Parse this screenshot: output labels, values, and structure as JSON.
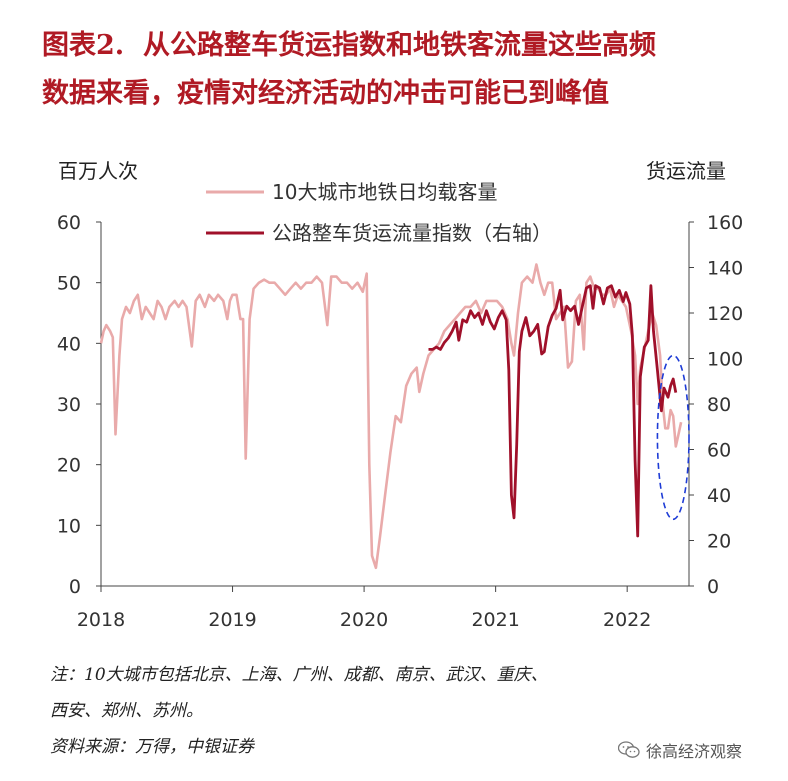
{
  "title": {
    "prefix": "图表2.",
    "line1": "从公路整车货运指数和地铁客流量这些高频",
    "line2": "数据来看，疫情对经济活动的冲击可能已到峰值"
  },
  "notes": {
    "note1": "注：10大城市包括北京、上海、广州、成都、南京、武汉、重庆、",
    "note2": "西安、郑州、苏州。",
    "source": "资料来源：万得，中银证券"
  },
  "watermark": {
    "text": "徐高经济观察",
    "icon": "wechat-icon"
  },
  "chart_data": {
    "type": "line",
    "left_axis_label": "百万人次",
    "right_axis_label": "货运流量",
    "x_ticks": [
      "2018",
      "2019",
      "2020",
      "2021",
      "2022"
    ],
    "left_ticks": [
      "0",
      "10",
      "20",
      "30",
      "40",
      "50",
      "60"
    ],
    "right_ticks": [
      "0",
      "20",
      "40",
      "60",
      "80",
      "100",
      "120",
      "140",
      "160"
    ],
    "ylim_left": [
      0,
      60
    ],
    "ylim_right": [
      0,
      160
    ],
    "xlim": [
      2018.0,
      2022.47
    ],
    "legend_position": "top-left",
    "grid": false,
    "colors": {
      "metro": "#e9aaaa",
      "freight": "#a0102a",
      "ellipse": "#1e3cd6"
    },
    "series": [
      {
        "name": "10大城市地铁日均载客量",
        "axis": "left",
        "points": [
          [
            2018.0,
            40
          ],
          [
            2018.02,
            42
          ],
          [
            2018.04,
            43
          ],
          [
            2018.07,
            42
          ],
          [
            2018.09,
            41
          ],
          [
            2018.11,
            25
          ],
          [
            2018.14,
            38
          ],
          [
            2018.16,
            44
          ],
          [
            2018.19,
            46
          ],
          [
            2018.22,
            45
          ],
          [
            2018.25,
            47
          ],
          [
            2018.28,
            48
          ],
          [
            2018.31,
            44
          ],
          [
            2018.34,
            46
          ],
          [
            2018.37,
            45
          ],
          [
            2018.4,
            44
          ],
          [
            2018.43,
            47
          ],
          [
            2018.46,
            46
          ],
          [
            2018.49,
            44
          ],
          [
            2018.52,
            46
          ],
          [
            2018.56,
            47
          ],
          [
            2018.59,
            46
          ],
          [
            2018.62,
            47
          ],
          [
            2018.65,
            46
          ],
          [
            2018.69,
            39.5
          ],
          [
            2018.72,
            47
          ],
          [
            2018.75,
            48
          ],
          [
            2018.79,
            46
          ],
          [
            2018.82,
            48
          ],
          [
            2018.86,
            47
          ],
          [
            2018.89,
            48
          ],
          [
            2018.93,
            47
          ],
          [
            2018.96,
            44
          ],
          [
            2018.98,
            47
          ],
          [
            2019.0,
            48
          ],
          [
            2019.03,
            48
          ],
          [
            2019.06,
            44
          ],
          [
            2019.08,
            44
          ],
          [
            2019.1,
            21
          ],
          [
            2019.13,
            44
          ],
          [
            2019.16,
            49
          ],
          [
            2019.2,
            50
          ],
          [
            2019.24,
            50.5
          ],
          [
            2019.28,
            50
          ],
          [
            2019.32,
            50
          ],
          [
            2019.36,
            49
          ],
          [
            2019.4,
            48
          ],
          [
            2019.44,
            49
          ],
          [
            2019.48,
            50
          ],
          [
            2019.52,
            49
          ],
          [
            2019.56,
            50
          ],
          [
            2019.6,
            50
          ],
          [
            2019.64,
            51
          ],
          [
            2019.68,
            50
          ],
          [
            2019.72,
            43
          ],
          [
            2019.75,
            51
          ],
          [
            2019.79,
            51
          ],
          [
            2019.83,
            50
          ],
          [
            2019.87,
            50
          ],
          [
            2019.91,
            49
          ],
          [
            2019.95,
            50
          ],
          [
            2019.99,
            48.5
          ],
          [
            2020.02,
            51.5
          ],
          [
            2020.04,
            20
          ],
          [
            2020.06,
            5
          ],
          [
            2020.09,
            3
          ],
          [
            2020.12,
            8
          ],
          [
            2020.16,
            15
          ],
          [
            2020.2,
            22
          ],
          [
            2020.24,
            28
          ],
          [
            2020.28,
            27
          ],
          [
            2020.32,
            33
          ],
          [
            2020.36,
            35
          ],
          [
            2020.4,
            36
          ],
          [
            2020.42,
            32
          ],
          [
            2020.45,
            35
          ],
          [
            2020.49,
            38
          ],
          [
            2020.53,
            39
          ],
          [
            2020.57,
            40
          ],
          [
            2020.61,
            42
          ],
          [
            2020.65,
            43
          ],
          [
            2020.69,
            44
          ],
          [
            2020.73,
            45
          ],
          [
            2020.77,
            46
          ],
          [
            2020.81,
            46
          ],
          [
            2020.85,
            47
          ],
          [
            2020.89,
            45
          ],
          [
            2020.93,
            47
          ],
          [
            2020.97,
            47
          ],
          [
            2021.01,
            47
          ],
          [
            2021.05,
            46
          ],
          [
            2021.09,
            44
          ],
          [
            2021.12,
            40
          ],
          [
            2021.14,
            38
          ],
          [
            2021.17,
            45
          ],
          [
            2021.2,
            50
          ],
          [
            2021.24,
            51
          ],
          [
            2021.28,
            50
          ],
          [
            2021.31,
            53
          ],
          [
            2021.34,
            50
          ],
          [
            2021.37,
            48
          ],
          [
            2021.4,
            50
          ],
          [
            2021.43,
            50
          ],
          [
            2021.46,
            44
          ],
          [
            2021.49,
            45
          ],
          [
            2021.52,
            46
          ],
          [
            2021.55,
            36
          ],
          [
            2021.58,
            37
          ],
          [
            2021.61,
            47
          ],
          [
            2021.64,
            48
          ],
          [
            2021.67,
            39
          ],
          [
            2021.69,
            50
          ],
          [
            2021.72,
            51
          ],
          [
            2021.75,
            49
          ],
          [
            2021.78,
            49
          ],
          [
            2021.81,
            48
          ],
          [
            2021.84,
            48
          ],
          [
            2021.87,
            49
          ],
          [
            2021.9,
            46
          ],
          [
            2021.93,
            48
          ],
          [
            2021.96,
            47
          ],
          [
            2021.99,
            46
          ],
          [
            2022.03,
            42
          ],
          [
            2022.06,
            38
          ],
          [
            2022.08,
            30
          ],
          [
            2022.1,
            36
          ],
          [
            2022.13,
            39
          ],
          [
            2022.16,
            42
          ],
          [
            2022.19,
            45
          ],
          [
            2022.22,
            43
          ],
          [
            2022.25,
            38
          ],
          [
            2022.27,
            30
          ],
          [
            2022.29,
            26
          ],
          [
            2022.31,
            26
          ],
          [
            2022.33,
            29
          ],
          [
            2022.35,
            28
          ],
          [
            2022.37,
            23
          ],
          [
            2022.39,
            25
          ],
          [
            2022.41,
            27
          ]
        ]
      },
      {
        "name": "公路整车货运流量指数（右轴）",
        "axis": "right",
        "points": [
          [
            2020.49,
            104
          ],
          [
            2020.52,
            104
          ],
          [
            2020.55,
            105
          ],
          [
            2020.58,
            104
          ],
          [
            2020.61,
            107
          ],
          [
            2020.64,
            109
          ],
          [
            2020.67,
            112
          ],
          [
            2020.7,
            116
          ],
          [
            2020.72,
            108
          ],
          [
            2020.75,
            117
          ],
          [
            2020.78,
            116
          ],
          [
            2020.81,
            121
          ],
          [
            2020.84,
            118
          ],
          [
            2020.87,
            120
          ],
          [
            2020.9,
            115
          ],
          [
            2020.93,
            121
          ],
          [
            2020.96,
            116
          ],
          [
            2020.99,
            113
          ],
          [
            2021.02,
            118
          ],
          [
            2021.05,
            121
          ],
          [
            2021.08,
            117
          ],
          [
            2021.1,
            95
          ],
          [
            2021.12,
            40
          ],
          [
            2021.14,
            30
          ],
          [
            2021.16,
            62
          ],
          [
            2021.18,
            103
          ],
          [
            2021.2,
            112
          ],
          [
            2021.23,
            118
          ],
          [
            2021.26,
            110
          ],
          [
            2021.29,
            112
          ],
          [
            2021.32,
            115
          ],
          [
            2021.35,
            102
          ],
          [
            2021.37,
            103
          ],
          [
            2021.4,
            114
          ],
          [
            2021.43,
            119
          ],
          [
            2021.46,
            122
          ],
          [
            2021.49,
            130
          ],
          [
            2021.51,
            117
          ],
          [
            2021.54,
            123
          ],
          [
            2021.57,
            121
          ],
          [
            2021.6,
            123
          ],
          [
            2021.63,
            115
          ],
          [
            2021.66,
            123
          ],
          [
            2021.69,
            131
          ],
          [
            2021.72,
            132
          ],
          [
            2021.74,
            122
          ],
          [
            2021.76,
            132
          ],
          [
            2021.79,
            131
          ],
          [
            2021.82,
            124
          ],
          [
            2021.85,
            131
          ],
          [
            2021.88,
            132
          ],
          [
            2021.91,
            127
          ],
          [
            2021.94,
            130
          ],
          [
            2021.97,
            125
          ],
          [
            2021.99,
            129
          ],
          [
            2022.02,
            124
          ],
          [
            2022.04,
            110
          ],
          [
            2022.06,
            55
          ],
          [
            2022.08,
            22
          ],
          [
            2022.1,
            92
          ],
          [
            2022.13,
            105
          ],
          [
            2022.16,
            108
          ],
          [
            2022.18,
            132
          ],
          [
            2022.2,
            112
          ],
          [
            2022.23,
            95
          ],
          [
            2022.26,
            77
          ],
          [
            2022.28,
            87
          ],
          [
            2022.31,
            83
          ],
          [
            2022.33,
            88
          ],
          [
            2022.35,
            91
          ],
          [
            2022.37,
            85
          ]
        ]
      }
    ],
    "annotation": {
      "type": "ellipse",
      "style": "dashed",
      "x_range": [
        2022.23,
        2022.47
      ],
      "y_range_left": [
        11,
        38
      ]
    }
  }
}
